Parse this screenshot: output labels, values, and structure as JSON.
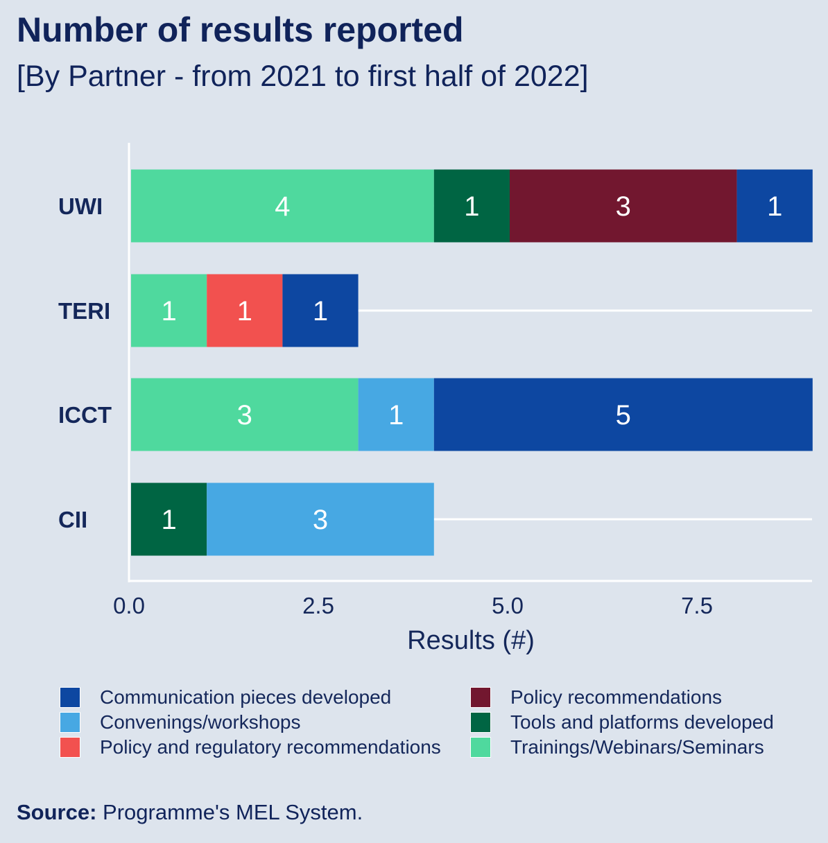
{
  "title": "Number of results reported",
  "subtitle": "[By Partner - from 2021 to first half of 2022]",
  "source_label": "Source:",
  "source_text": "Programme's MEL System.",
  "chart_data": {
    "type": "bar",
    "orientation": "horizontal",
    "stacked": true,
    "categories": [
      "UWI",
      "TERI",
      "ICCT",
      "CII"
    ],
    "series": [
      {
        "name": "Trainings/Webinars/Seminars",
        "color": "#4fd99e",
        "values": [
          4,
          1,
          3,
          0
        ]
      },
      {
        "name": "Tools and platforms developed",
        "color": "#006543",
        "values": [
          1,
          0,
          0,
          1
        ]
      },
      {
        "name": "Policy and regulatory recommendations",
        "color": "#f2514f",
        "values": [
          0,
          1,
          0,
          0
        ]
      },
      {
        "name": "Convenings/workshops",
        "color": "#47a8e3",
        "values": [
          0,
          0,
          1,
          3
        ]
      },
      {
        "name": "Policy recommendations",
        "color": "#72172f",
        "values": [
          3,
          0,
          0,
          0
        ]
      },
      {
        "name": "Communication pieces developed",
        "color": "#0d47a1",
        "values": [
          1,
          1,
          5,
          0
        ]
      }
    ],
    "xlabel": "Results (#)",
    "ylabel": "",
    "xlim": [
      0,
      9
    ],
    "xticks": [
      "0.0",
      "2.5",
      "5.0",
      "7.5"
    ],
    "xtick_values": [
      0,
      2.5,
      5,
      7.5
    ],
    "grid": "horizontal lines at categories",
    "data_labels": true
  },
  "legend": [
    {
      "label": "Communication pieces developed",
      "color": "#0d47a1"
    },
    {
      "label": "Policy recommendations",
      "color": "#72172f"
    },
    {
      "label": "Convenings/workshops",
      "color": "#47a8e3"
    },
    {
      "label": "Tools and platforms developed",
      "color": "#006543"
    },
    {
      "label": "Policy and regulatory recommendations",
      "color": "#f2514f"
    },
    {
      "label": "Trainings/Webinars/Seminars",
      "color": "#4fd99e"
    }
  ]
}
